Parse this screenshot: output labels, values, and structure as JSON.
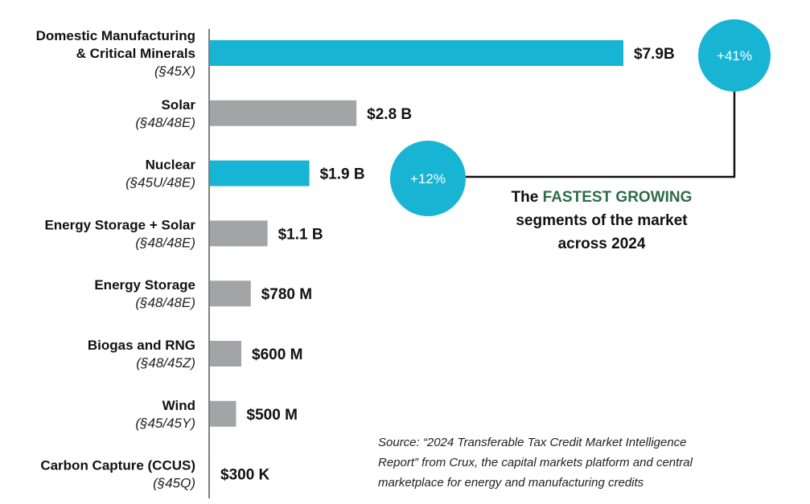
{
  "chart_data": {
    "type": "bar",
    "orientation": "horizontal",
    "unit": "USD",
    "categories": [
      "Domestic Manufacturing & Critical Minerals (§45X)",
      "Solar (§48/48E)",
      "Nuclear (§45U/48E)",
      "Energy Storage + Solar (§48/48E)",
      "Energy Storage (§48/48E)",
      "Biogas and RNG (§48/45Z)",
      "Wind (§45/45Y)",
      "Carbon Capture (CCUS) (§45Q)"
    ],
    "items": [
      {
        "name": [
          "Domestic Manufacturing",
          "& Critical Minerals"
        ],
        "code": "(§45X)",
        "value": 7900000000,
        "label": "$7.9B",
        "color": "#18b4d4"
      },
      {
        "name": [
          "Solar"
        ],
        "code": "(§48/48E)",
        "value": 2800000000,
        "label": "$2.8 B",
        "color": "#a3a4a6"
      },
      {
        "name": [
          "Nuclear"
        ],
        "code": "(§45U/48E)",
        "value": 1900000000,
        "label": "$1.9 B",
        "color": "#18b4d4"
      },
      {
        "name": [
          "Energy Storage + Solar"
        ],
        "code": "(§48/48E)",
        "value": 1100000000,
        "label": "$1.1 B",
        "color": "#a3a4a6"
      },
      {
        "name": [
          "Energy Storage"
        ],
        "code": "(§48/48E)",
        "value": 780000000,
        "label": "$780 M",
        "color": "#a3a4a6"
      },
      {
        "name": [
          "Biogas and RNG"
        ],
        "code": "(§48/45Z)",
        "value": 600000000,
        "label": "$600 M",
        "color": "#a3a4a6"
      },
      {
        "name": [
          "Wind"
        ],
        "code": "(§45/45Y)",
        "value": 500000000,
        "label": "$500 M",
        "color": "#a3a4a6"
      },
      {
        "name": [
          "Carbon Capture (CCUS)"
        ],
        "code": "(§45Q)",
        "value": 300000,
        "label": "$300 K",
        "color": "#a3a4a6"
      }
    ],
    "growth_badges": [
      {
        "category_index": 0,
        "label": "+41%"
      },
      {
        "category_index": 2,
        "label": "+12%"
      }
    ],
    "xlim": [
      0,
      7900000000
    ],
    "grid": false,
    "legend": "none"
  },
  "callout": {
    "prefix": "The ",
    "highlight": "FASTEST GROWING",
    "line2": "segments of the market",
    "line3": "across 2024",
    "highlight_color": "#2e6b4a"
  },
  "source": {
    "line1": "Source:  “2024 Transferable Tax Credit Market Intelligence",
    "line2": "Report” from Crux, the capital markets platform and central",
    "line3": "marketplace for energy and manufacturing credits"
  },
  "colors": {
    "accent": "#18b4d4",
    "neutral_bar": "#a3a4a6",
    "axis": "#555555",
    "connector": "#111111"
  }
}
